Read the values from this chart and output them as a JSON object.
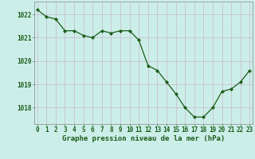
{
  "hours": [
    0,
    1,
    2,
    3,
    4,
    5,
    6,
    7,
    8,
    9,
    10,
    11,
    12,
    13,
    14,
    15,
    16,
    17,
    18,
    19,
    20,
    21,
    22,
    23
  ],
  "pressure": [
    1022.2,
    1021.9,
    1021.8,
    1021.3,
    1021.3,
    1021.1,
    1021.0,
    1021.3,
    1021.2,
    1021.3,
    1021.3,
    1020.9,
    1019.8,
    1019.6,
    1019.1,
    1018.6,
    1018.0,
    1017.6,
    1017.6,
    1018.0,
    1018.7,
    1018.8,
    1019.1,
    1019.6
  ],
  "line_color": "#1a5c1a",
  "marker": "D",
  "marker_size": 2.2,
  "bg_color": "#cceee8",
  "grid_color": "#c8b8cc",
  "xlabel": "Graphe pression niveau de la mer (hPa)",
  "xlabel_color": "#1a5c1a",
  "tick_color": "#1a5c1a",
  "ylim": [
    1017.3,
    1022.55
  ],
  "yticks": [
    1018,
    1019,
    1020,
    1021,
    1022
  ],
  "xticks": [
    0,
    1,
    2,
    3,
    4,
    5,
    6,
    7,
    8,
    9,
    10,
    11,
    12,
    13,
    14,
    15,
    16,
    17,
    18,
    19,
    20,
    21,
    22,
    23
  ],
  "linewidth": 0.9,
  "tick_fontsize": 5.5,
  "xlabel_fontsize": 6.5
}
